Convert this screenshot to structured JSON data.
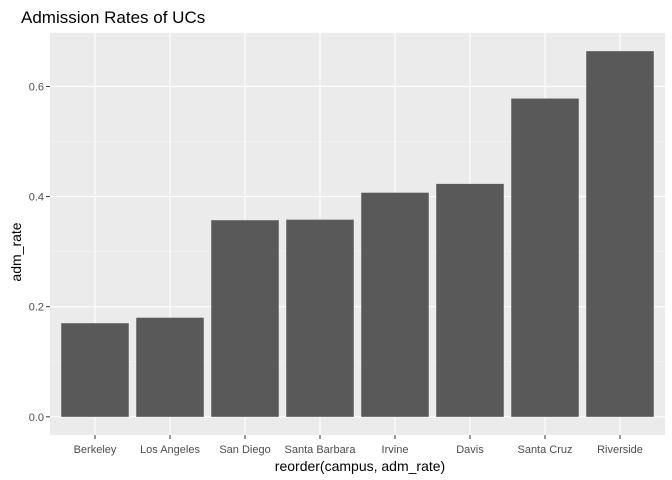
{
  "chart_data": {
    "type": "bar",
    "title": "Admission Rates of UCs",
    "xlabel": "reorder(campus, adm_rate)",
    "ylabel": "adm_rate",
    "categories": [
      "Berkeley",
      "Los Angeles",
      "San Diego",
      "Santa Barbara",
      "Irvine",
      "Davis",
      "Santa Cruz",
      "Riverside"
    ],
    "values": [
      0.17,
      0.18,
      0.357,
      0.358,
      0.407,
      0.423,
      0.578,
      0.664
    ],
    "ylim": [
      -0.033,
      0.697
    ],
    "yticks": [
      0.0,
      0.2,
      0.4,
      0.6
    ],
    "ytick_labels": [
      "0.0",
      "0.2",
      "0.4",
      "0.6"
    ],
    "grid": true,
    "colors": {
      "bar": "#595959",
      "panel_background": "#ebebeb",
      "grid_major": "#ffffff",
      "grid_minor": "#f4f4f4"
    }
  }
}
